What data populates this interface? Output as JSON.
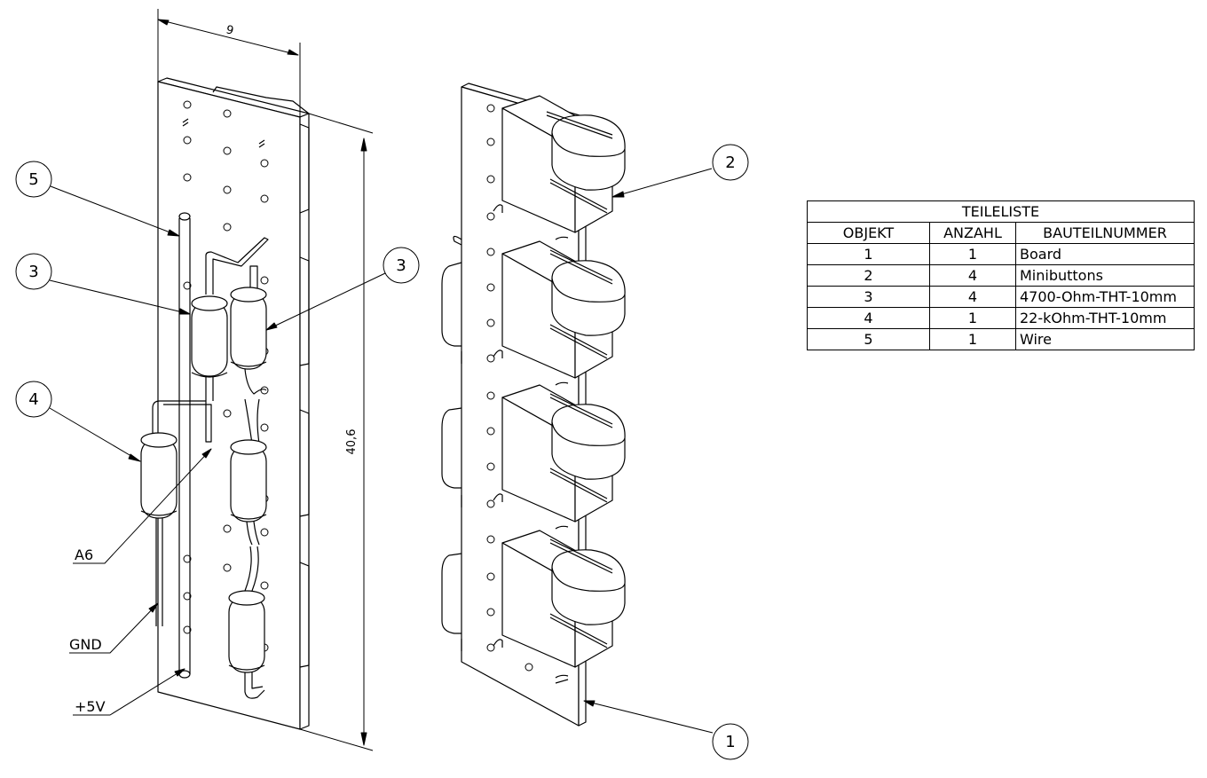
{
  "dimensions": {
    "width": "9",
    "height": "40,6"
  },
  "signals": [
    {
      "label": "A6"
    },
    {
      "label": "GND"
    },
    {
      "label": "+5V"
    }
  ],
  "balloons": [
    {
      "id": "5"
    },
    {
      "id": "3"
    },
    {
      "id": "4"
    },
    {
      "id": "3"
    },
    {
      "id": "2"
    },
    {
      "id": "1"
    }
  ],
  "parts_list": {
    "title": "TEILELISTE",
    "headers": [
      "OBJEKT",
      "ANZAHL",
      "BAUTEILNUMMER"
    ],
    "rows": [
      {
        "objekt": "1",
        "anzahl": "1",
        "bauteil": "Board"
      },
      {
        "objekt": "2",
        "anzahl": "4",
        "bauteil": "Minibuttons"
      },
      {
        "objekt": "3",
        "anzahl": "4",
        "bauteil": "4700-Ohm-THT-10mm"
      },
      {
        "objekt": "4",
        "anzahl": "1",
        "bauteil": "22-kOhm-THT-10mm"
      },
      {
        "objekt": "5",
        "anzahl": "1",
        "bauteil": "Wire"
      }
    ]
  }
}
